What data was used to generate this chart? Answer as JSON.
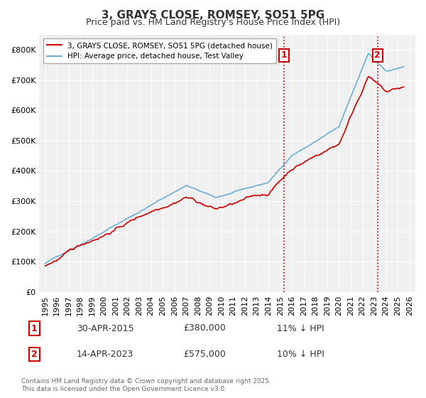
{
  "title": "3, GRAYS CLOSE, ROMSEY, SO51 5PG",
  "subtitle": "Price paid vs. HM Land Registry's House Price Index (HPI)",
  "xlabel": "",
  "ylabel": "",
  "ylim": [
    0,
    850000
  ],
  "yticks": [
    0,
    100000,
    200000,
    300000,
    400000,
    500000,
    600000,
    700000,
    800000
  ],
  "ytick_labels": [
    "£0",
    "£100K",
    "£200K",
    "£300K",
    "£400K",
    "£500K",
    "£600K",
    "£700K",
    "£800K"
  ],
  "xlim_start": 1994.5,
  "xlim_end": 2026.5,
  "xticks": [
    1995,
    1996,
    1997,
    1998,
    1999,
    2000,
    2001,
    2002,
    2003,
    2004,
    2005,
    2006,
    2007,
    2008,
    2009,
    2010,
    2011,
    2012,
    2013,
    2014,
    2015,
    2016,
    2017,
    2018,
    2019,
    2020,
    2021,
    2022,
    2023,
    2024,
    2025,
    2026
  ],
  "hpi_color": "#6baed6",
  "price_color": "#cc0000",
  "vline_color": "#cc0000",
  "vline_style": ":",
  "marker1_year": 2015.33,
  "marker2_year": 2023.29,
  "marker1_label": "1",
  "marker2_label": "2",
  "legend_label1": "3, GRAYS CLOSE, ROMSEY, SO51 5PG (detached house)",
  "legend_label2": "HPI: Average price, detached house, Test Valley",
  "transaction1_date": "30-APR-2015",
  "transaction1_price": "£380,000",
  "transaction1_note": "11% ↓ HPI",
  "transaction2_date": "14-APR-2023",
  "transaction2_price": "£575,000",
  "transaction2_note": "10% ↓ HPI",
  "footnote": "Contains HM Land Registry data © Crown copyright and database right 2025.\nThis data is licensed under the Open Government Licence v3.0.",
  "bg_color": "#ffffff",
  "plot_bg_color": "#f0f0f0",
  "grid_color": "#ffffff",
  "title_fontsize": 11,
  "subtitle_fontsize": 9,
  "tick_fontsize": 8
}
